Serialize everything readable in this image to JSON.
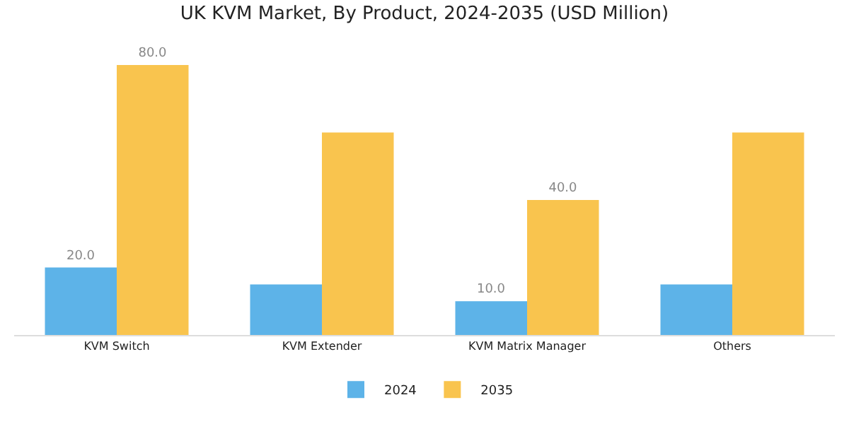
{
  "chart_data": {
    "type": "bar",
    "title": "UK KVM Market, By Product, 2024-2035 (USD Million)",
    "categories": [
      "KVM Switch",
      "KVM Extender",
      "KVM Matrix Manager",
      "Others"
    ],
    "series": [
      {
        "name": "2024",
        "color": "#5db3e8",
        "values": [
          20,
          15,
          10,
          15
        ],
        "value_labels": [
          "20.0",
          null,
          "10.0",
          null
        ]
      },
      {
        "name": "2035",
        "color": "#f9c44e",
        "values": [
          80,
          60,
          40,
          60
        ],
        "value_labels": [
          "80.0",
          null,
          "40.0",
          null
        ]
      }
    ],
    "grid": false,
    "legend": "bottom"
  }
}
